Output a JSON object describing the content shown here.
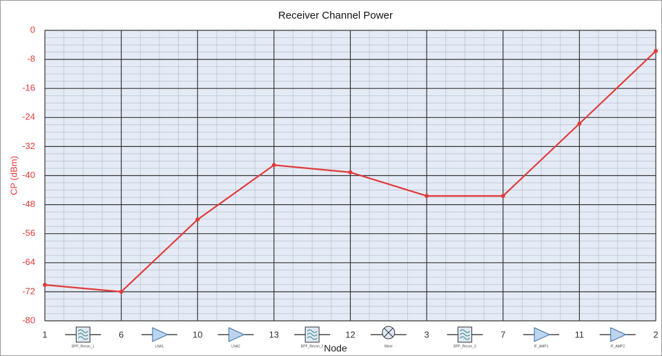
{
  "chart_data": {
    "type": "line",
    "title": "Receiver Channel Power",
    "x_label": "Node",
    "y_label": "CP (dBm)",
    "categories": [
      "1",
      "6",
      "10",
      "13",
      "12",
      "3",
      "7",
      "11",
      "2"
    ],
    "components": [
      "BPF_Recon_1",
      "LNA1",
      "LNA2",
      "BPF_Recon_2",
      "Mixer",
      "BPF_Recon_3",
      "IF_AMP1",
      "IF_AMP2"
    ],
    "series": [
      {
        "name": "CP",
        "color": "#e03a3a",
        "values": [
          -70.1,
          -72,
          -52.1,
          -37.1,
          -39.1,
          -45.6,
          -45.6,
          -25.7,
          -5.7
        ]
      }
    ],
    "ylim": [
      -80,
      0
    ],
    "yticks": [
      0,
      -8,
      -16,
      -24,
      -32,
      -40,
      -48,
      -56,
      -64,
      -72,
      -80
    ],
    "grid": true,
    "plot_background": "#e5ebf6",
    "axis_label_color": "#e03a3a"
  }
}
